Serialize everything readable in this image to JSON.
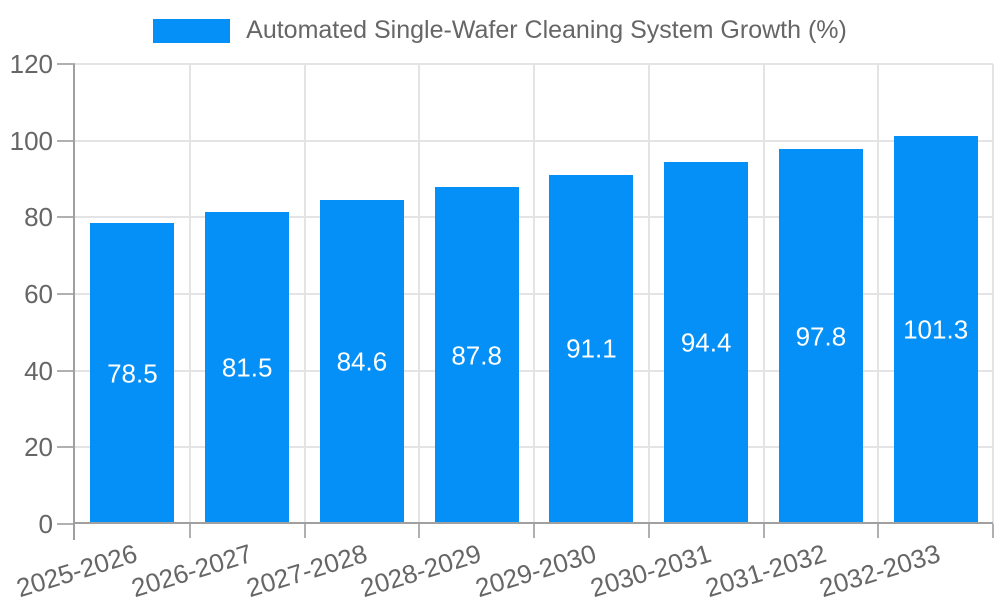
{
  "legend": {
    "series_label": "Automated Single-Wafer Cleaning System Growth (%)"
  },
  "chart_data": {
    "type": "bar",
    "title": "Automated Single-Wafer Cleaning System Growth (%)",
    "categories": [
      "2025-2026",
      "2026-2027",
      "2027-2028",
      "2028-2029",
      "2029-2030",
      "2030-2031",
      "2031-2032",
      "2032-2033"
    ],
    "values": [
      78.5,
      81.5,
      84.6,
      87.8,
      91.1,
      94.4,
      97.8,
      101.3
    ],
    "xlabel": "",
    "ylabel": "",
    "ylim": [
      0,
      120
    ],
    "yticks": [
      0,
      20,
      40,
      60,
      80,
      100,
      120
    ],
    "grid": true,
    "legend_position": "top",
    "value_labels_position": "center-inside-bar"
  },
  "colors": {
    "background": "#ffffff",
    "bar": "#0590f7",
    "grid": "#e4e4e4",
    "axis": "#a0a0a0",
    "tick": "#b0b0b0",
    "tick_label": "#666666",
    "legend_text": "#666666",
    "value_label": "#ffffff"
  }
}
